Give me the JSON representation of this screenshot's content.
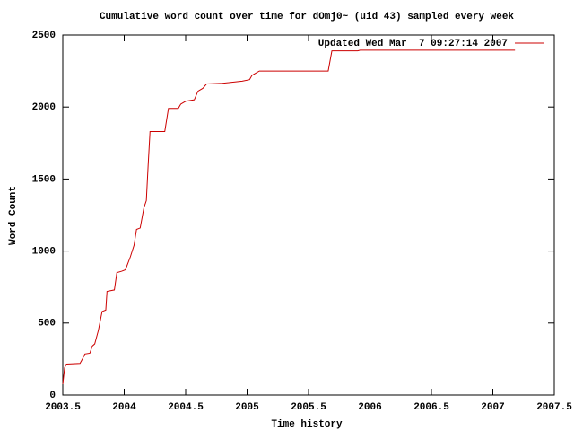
{
  "chart_data": {
    "type": "line",
    "title": "Cumulative word count over time for dOmj0~ (uid 43) sampled every week",
    "x_label": "Time history",
    "y_label": "Word Count",
    "legend_position": "top-right",
    "series": [
      {
        "name": "Updated Wed Mar  7 09:27:14 2007",
        "color": "#cc0000",
        "x": [
          2003.5,
          2003.515,
          2003.53,
          2003.64,
          2003.66,
          2003.68,
          2003.72,
          2003.74,
          2003.76,
          2003.79,
          2003.82,
          2003.85,
          2003.86,
          2003.92,
          2003.94,
          2003.98,
          2004.01,
          2004.05,
          2004.08,
          2004.1,
          2004.13,
          2004.16,
          2004.18,
          2004.195,
          2004.21,
          2004.33,
          2004.36,
          2004.44,
          2004.46,
          2004.5,
          2004.57,
          2004.6,
          2004.64,
          2004.67,
          2004.8,
          2004.96,
          2005.02,
          2005.04,
          2005.1,
          2005.66,
          2005.69,
          2005.9,
          2005.92,
          2007.18
        ],
        "values": [
          75,
          190,
          215,
          220,
          250,
          285,
          290,
          340,
          355,
          450,
          580,
          590,
          720,
          730,
          850,
          860,
          870,
          960,
          1040,
          1150,
          1160,
          1300,
          1350,
          1600,
          1830,
          1830,
          1990,
          1990,
          2020,
          2040,
          2050,
          2110,
          2130,
          2160,
          2165,
          2180,
          2190,
          2220,
          2250,
          2250,
          2390,
          2390,
          2395,
          2395
        ]
      }
    ],
    "xlim": [
      2003.5,
      2007.5
    ],
    "xticks": [
      2003.5,
      2004,
      2004.5,
      2005,
      2005.5,
      2006,
      2006.5,
      2007,
      2007.5
    ],
    "ylim": [
      0,
      2500
    ],
    "yticks": [
      0,
      500,
      1000,
      1500,
      2000,
      2500
    ]
  }
}
